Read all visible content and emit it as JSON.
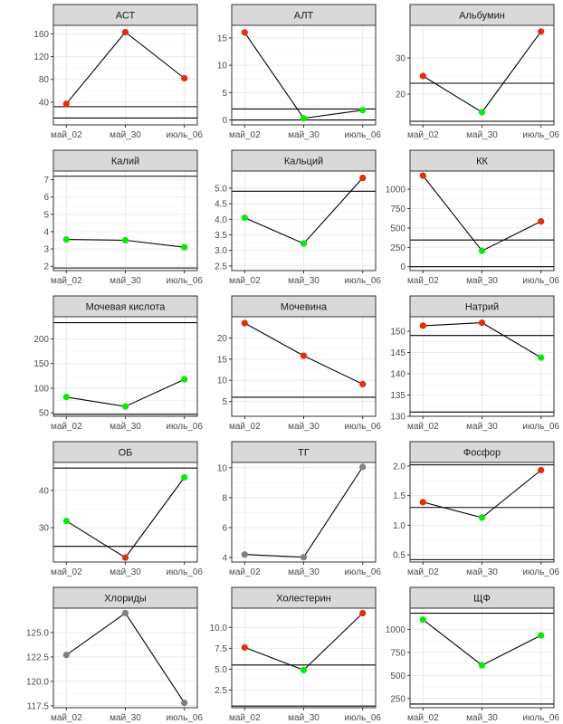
{
  "palette": {
    "high": "#ee2a00",
    "normal": "#00ee00",
    "neutral": "#808080"
  },
  "chart_data": [
    {
      "type": "line",
      "title": "АСТ",
      "categories": [
        "май_02",
        "май_30",
        "июль_06"
      ],
      "values": [
        37,
        163,
        82
      ],
      "colors": [
        "high",
        "high",
        "high"
      ],
      "ylim": [
        0,
        175
      ],
      "yticks": [
        "40",
        "80",
        "120",
        "160"
      ],
      "ref_lines": [
        12,
        32
      ]
    },
    {
      "type": "line",
      "title": "АЛТ",
      "categories": [
        "май_02",
        "май_30",
        "июль_06"
      ],
      "values": [
        16,
        0.3,
        1.8
      ],
      "colors": [
        "high",
        "normal",
        "normal"
      ],
      "ylim": [
        -0.9,
        17.3
      ],
      "yticks": [
        "0",
        "5",
        "10",
        "15"
      ],
      "ref_lines": [
        0,
        2
      ]
    },
    {
      "type": "line",
      "title": "Альбумин",
      "categories": [
        "май_02",
        "май_30",
        "июль_06"
      ],
      "values": [
        25,
        15,
        37.3
      ],
      "colors": [
        "high",
        "normal",
        "high"
      ],
      "ylim": [
        11.5,
        39
      ],
      "yticks": [
        "20",
        "30"
      ],
      "ref_lines": [
        12.5,
        23
      ]
    },
    {
      "type": "line",
      "title": "Калий",
      "categories": [
        "май_02",
        "май_30",
        "июль_06"
      ],
      "values": [
        3.55,
        3.5,
        3.1
      ],
      "colors": [
        "normal",
        "normal",
        "normal"
      ],
      "ylim": [
        1.75,
        7.5
      ],
      "yticks": [
        "2",
        "3",
        "4",
        "5",
        "6",
        "7"
      ],
      "ref_lines": [
        1.9,
        7.2
      ]
    },
    {
      "type": "line",
      "title": "Кальций",
      "categories": [
        "май_02",
        "май_30",
        "июль_06"
      ],
      "values": [
        4.05,
        3.22,
        5.33
      ],
      "colors": [
        "normal",
        "normal",
        "high"
      ],
      "ylim": [
        2.35,
        5.55
      ],
      "yticks": [
        "2.5",
        "3.0",
        "3.5",
        "4.0",
        "4.5",
        "5.0"
      ],
      "ref_lines": [
        2.35,
        4.9
      ]
    },
    {
      "type": "line",
      "title": "КК",
      "categories": [
        "май_02",
        "май_30",
        "июль_06"
      ],
      "values": [
        1175,
        205,
        585
      ],
      "colors": [
        "high",
        "normal",
        "high"
      ],
      "ylim": [
        -50,
        1235
      ],
      "yticks": [
        "0",
        "250",
        "500",
        "750",
        "1000"
      ],
      "ref_lines": [
        0,
        345
      ]
    },
    {
      "type": "line",
      "title": "Мочевая кислота",
      "categories": [
        "май_02",
        "май_30",
        "июль_06"
      ],
      "values": [
        82,
        63,
        118
      ],
      "colors": [
        "normal",
        "normal",
        "normal"
      ],
      "ylim": [
        43,
        245
      ],
      "yticks": [
        "50",
        "100",
        "150",
        "200"
      ],
      "ref_lines": [
        47,
        233
      ]
    },
    {
      "type": "line",
      "title": "Мочевина",
      "categories": [
        "май_02",
        "май_30",
        "июль_06"
      ],
      "values": [
        23.5,
        15.8,
        9.1
      ],
      "colors": [
        "high",
        "high",
        "high"
      ],
      "ylim": [
        1.5,
        25
      ],
      "yticks": [
        "5",
        "10",
        "15",
        "20"
      ],
      "ref_lines": [
        1.5,
        6
      ]
    },
    {
      "type": "line",
      "title": "Натрий",
      "categories": [
        "май_02",
        "май_30",
        "июль_06"
      ],
      "values": [
        151.3,
        152,
        143.8
      ],
      "colors": [
        "high",
        "high",
        "normal"
      ],
      "ylim": [
        130,
        153.4
      ],
      "yticks": [
        "130",
        "135",
        "140",
        "145",
        "150"
      ],
      "ref_lines": [
        131,
        149
      ]
    },
    {
      "type": "line",
      "title": "ОБ",
      "categories": [
        "май_02",
        "май_30",
        "июль_06"
      ],
      "values": [
        31.8,
        22,
        43.5
      ],
      "colors": [
        "normal",
        "high",
        "normal"
      ],
      "ylim": [
        20.8,
        47.5
      ],
      "yticks": [
        "30",
        "40"
      ],
      "ref_lines": [
        25,
        46
      ]
    },
    {
      "type": "line",
      "title": "ТГ",
      "categories": [
        "май_02",
        "май_30",
        "июль_06"
      ],
      "values": [
        4.2,
        4.02,
        10.05
      ],
      "colors": [
        "neutral",
        "neutral",
        "neutral"
      ],
      "ylim": [
        3.7,
        10.35
      ],
      "yticks": [
        "4",
        "6",
        "8",
        "10"
      ],
      "ref_lines": []
    },
    {
      "type": "line",
      "title": "Фосфор",
      "categories": [
        "май_02",
        "май_30",
        "июль_06"
      ],
      "values": [
        1.39,
        1.13,
        1.93
      ],
      "colors": [
        "high",
        "normal",
        "high"
      ],
      "ylim": [
        0.38,
        2.06
      ],
      "yticks": [
        "0.5",
        "1.0",
        "1.5",
        "2.0"
      ],
      "ref_lines": [
        0.42,
        1.3,
        2.02
      ]
    },
    {
      "type": "line",
      "title": "Хлориды",
      "categories": [
        "май_02",
        "май_30",
        "июль_06"
      ],
      "values": [
        122.7,
        127,
        117.8
      ],
      "colors": [
        "neutral",
        "neutral",
        "neutral"
      ],
      "ylim": [
        117.3,
        127.5
      ],
      "yticks": [
        "117.5",
        "120.0",
        "122.5",
        "125.0"
      ],
      "ref_lines": []
    },
    {
      "type": "line",
      "title": "Холестерин",
      "categories": [
        "май_02",
        "май_30",
        "июль_06"
      ],
      "values": [
        7.6,
        4.9,
        11.7
      ],
      "colors": [
        "high",
        "normal",
        "high"
      ],
      "ylim": [
        0.4,
        12.3
      ],
      "yticks": [
        "2.5",
        "5.0",
        "7.5",
        "10.0"
      ],
      "ref_lines": [
        0.6,
        5.5
      ]
    },
    {
      "type": "line",
      "title": "ЩФ",
      "categories": [
        "май_02",
        "май_30",
        "июль_06"
      ],
      "values": [
        1105,
        610,
        935
      ],
      "colors": [
        "normal",
        "normal",
        "normal"
      ],
      "ylim": [
        150,
        1230
      ],
      "yticks": [
        "250",
        "500",
        "750",
        "1000"
      ],
      "ref_lines": [
        190,
        1175
      ]
    }
  ]
}
